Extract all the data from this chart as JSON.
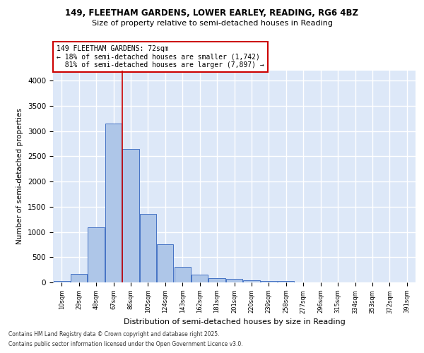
{
  "title_line1": "149, FLEETHAM GARDENS, LOWER EARLEY, READING, RG6 4BZ",
  "title_line2": "Size of property relative to semi-detached houses in Reading",
  "xlabel": "Distribution of semi-detached houses by size in Reading",
  "ylabel": "Number of semi-detached properties",
  "categories": [
    "10sqm",
    "29sqm",
    "48sqm",
    "67sqm",
    "86sqm",
    "105sqm",
    "124sqm",
    "143sqm",
    "162sqm",
    "181sqm",
    "201sqm",
    "220sqm",
    "239sqm",
    "258sqm",
    "277sqm",
    "296sqm",
    "315sqm",
    "334sqm",
    "353sqm",
    "372sqm",
    "391sqm"
  ],
  "values": [
    30,
    175,
    1090,
    3150,
    2640,
    1360,
    750,
    310,
    155,
    90,
    65,
    40,
    35,
    30,
    5,
    5,
    5,
    5,
    5,
    5,
    5
  ],
  "bar_color": "#aec6e8",
  "bar_edge_color": "#4472c4",
  "background_color": "#dde8f8",
  "grid_color": "#ffffff",
  "property_size": 72,
  "pct_smaller": 18,
  "pct_larger": 81,
  "count_smaller": 1742,
  "count_larger": 7897,
  "vline_color": "#cc0000",
  "annotation_box_edge_color": "#cc0000",
  "ylim": [
    0,
    4200
  ],
  "yticks": [
    0,
    500,
    1000,
    1500,
    2000,
    2500,
    3000,
    3500,
    4000
  ],
  "footnote_line1": "Contains HM Land Registry data © Crown copyright and database right 2025.",
  "footnote_line2": "Contains public sector information licensed under the Open Government Licence v3.0."
}
